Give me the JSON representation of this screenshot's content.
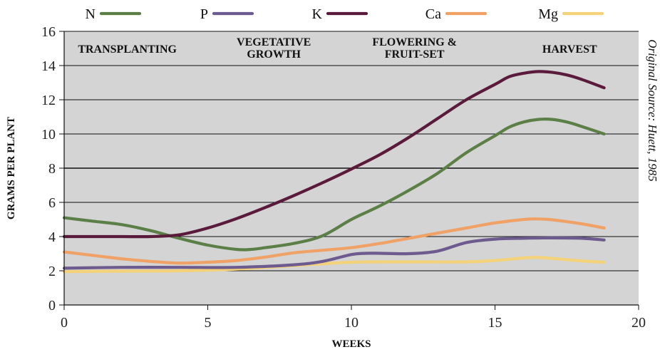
{
  "chart_data": {
    "type": "line",
    "xlabel": "WEEKS",
    "ylabel": "GRAMS PER PLANT",
    "xlim": [
      0,
      20
    ],
    "ylim": [
      0,
      16
    ],
    "x_ticks": [
      "0",
      "5",
      "10",
      "15",
      "20"
    ],
    "y_ticks": [
      "0",
      "2",
      "4",
      "6",
      "8",
      "10",
      "12",
      "14",
      "16"
    ],
    "background": "#d4d4d4",
    "grid": true,
    "legend_position": "top",
    "stages": [
      {
        "lines": [
          "TRANSPLANTING"
        ],
        "x": 2.2
      },
      {
        "lines": [
          "VEGETATIVE",
          "GROWTH"
        ],
        "x": 7.3
      },
      {
        "lines": [
          "FLOWERING &",
          "FRUIT-SET"
        ],
        "x": 12.2
      },
      {
        "lines": [
          "HARVEST"
        ],
        "x": 17.6
      }
    ],
    "source_note": "Original Source: Huett, 1985",
    "series": [
      {
        "name": "N",
        "color": "#5b7f47",
        "x": [
          0,
          1,
          2,
          3,
          4,
          5,
          6,
          6.5,
          7,
          8,
          9,
          10,
          11,
          12,
          13,
          14,
          15,
          15.5,
          16,
          16.5,
          17,
          17.5,
          18,
          18.8
        ],
        "y": [
          5.1,
          4.9,
          4.7,
          4.35,
          3.9,
          3.5,
          3.25,
          3.25,
          3.35,
          3.6,
          4.05,
          5.0,
          5.8,
          6.7,
          7.7,
          8.9,
          9.9,
          10.4,
          10.7,
          10.85,
          10.85,
          10.7,
          10.45,
          10.0
        ]
      },
      {
        "name": "P",
        "color": "#6d5a8f",
        "x": [
          0,
          2,
          4,
          6,
          8,
          9,
          10,
          10.5,
          11,
          12,
          13,
          14,
          15,
          16,
          17,
          18,
          18.8
        ],
        "y": [
          2.15,
          2.2,
          2.2,
          2.2,
          2.35,
          2.55,
          2.95,
          3.02,
          3.02,
          3.0,
          3.15,
          3.65,
          3.85,
          3.9,
          3.92,
          3.9,
          3.8
        ]
      },
      {
        "name": "K",
        "color": "#5a1a3c",
        "x": [
          0,
          1,
          2,
          3,
          4,
          5,
          6,
          7,
          8,
          9,
          10,
          11,
          12,
          13,
          14,
          15,
          15.5,
          16,
          16.5,
          17,
          17.5,
          18,
          18.8
        ],
        "y": [
          4.0,
          4.0,
          4.0,
          4.0,
          4.1,
          4.5,
          5.05,
          5.7,
          6.4,
          7.15,
          7.95,
          8.8,
          9.8,
          10.9,
          12.0,
          12.9,
          13.35,
          13.55,
          13.65,
          13.6,
          13.45,
          13.2,
          12.7
        ]
      },
      {
        "name": "Ca",
        "color": "#f0a165",
        "x": [
          0,
          1,
          2,
          3,
          4,
          5,
          6,
          7,
          8,
          9,
          10,
          11,
          12,
          13,
          14,
          15,
          16,
          16.5,
          17,
          18,
          18.8
        ],
        "y": [
          3.1,
          2.9,
          2.7,
          2.55,
          2.45,
          2.5,
          2.6,
          2.8,
          3.05,
          3.2,
          3.35,
          3.6,
          3.9,
          4.2,
          4.5,
          4.8,
          5.0,
          5.03,
          4.98,
          4.75,
          4.5
        ]
      },
      {
        "name": "Mg",
        "color": "#f4d27a",
        "x": [
          0,
          2,
          4,
          6,
          8,
          10,
          12,
          14,
          15,
          16,
          16.5,
          17,
          18,
          18.8
        ],
        "y": [
          1.95,
          1.98,
          2.0,
          2.1,
          2.3,
          2.5,
          2.52,
          2.52,
          2.6,
          2.75,
          2.78,
          2.72,
          2.58,
          2.5
        ]
      }
    ]
  }
}
